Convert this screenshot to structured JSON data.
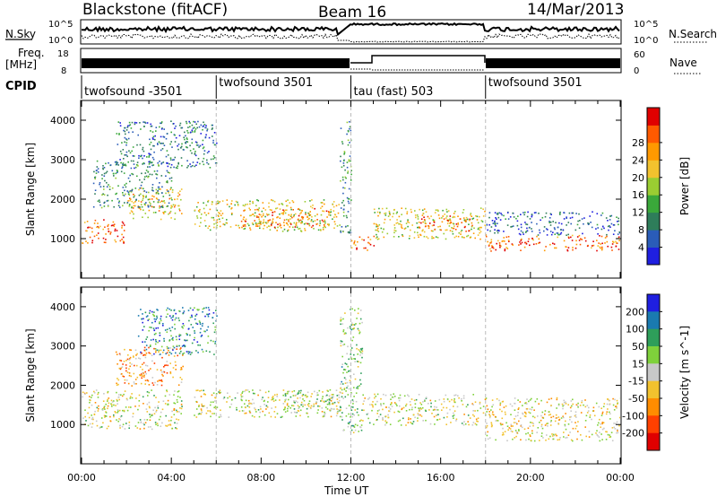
{
  "header": {
    "station": "Blackstone (fitACF)",
    "beam": "Beam 16",
    "date": "14/Mar/2013"
  },
  "strip_labels": {
    "nsky": "N.Sky",
    "nsearch": "N.Search",
    "freq_line1": "Freq.",
    "freq_line2": "[MHz]",
    "nave": "Nave",
    "cpid": "CPID",
    "nsky_ticks": [
      "10^5",
      "10^0"
    ],
    "freq_ticks": [
      "18",
      "8"
    ],
    "nave_ticks": [
      "60",
      "0"
    ]
  },
  "cpid_segments": [
    {
      "label": "twofsound -3501",
      "start": 0.0,
      "end": 6.0
    },
    {
      "label": "twofsound 3501",
      "start": 6.0,
      "end": 12.0
    },
    {
      "label": "tau (fast) 503",
      "start": 12.0,
      "end": 18.0
    },
    {
      "label": "twofsound 3501",
      "start": 18.0,
      "end": 24.0
    }
  ],
  "chart_data": [
    {
      "type": "heatmap",
      "xlabel": "Time UT",
      "ylabel": "Slant Range [km]",
      "xlim": [
        0,
        24
      ],
      "ylim": [
        0,
        4500
      ],
      "x_tick_labels": [
        "00:00",
        "04:00",
        "08:00",
        "12:00",
        "16:00",
        "20:00",
        "00:00"
      ],
      "y_tick_labels": [
        "1000",
        "2000",
        "3000",
        "4000"
      ],
      "colorbar": {
        "label": "Power [dB]",
        "tick_labels": [
          "4",
          "8",
          "12",
          "16",
          "20",
          "24",
          "28"
        ],
        "colors": [
          "#1f1fe0",
          "#2a5cb8",
          "#2e7d5a",
          "#3aa83a",
          "#9acd32",
          "#f2c22e",
          "#ff9900",
          "#ff5a00",
          "#e00000"
        ]
      },
      "bands": [
        {
          "t0": 0.0,
          "t1": 2.0,
          "r0": 900,
          "r1": 1500,
          "value": 26
        },
        {
          "t0": 2.0,
          "t1": 4.5,
          "r0": 1500,
          "r1": 2300,
          "value": 20
        },
        {
          "t0": 0.5,
          "t1": 4.0,
          "r0": 1800,
          "r1": 3000,
          "value": 10
        },
        {
          "t0": 1.5,
          "t1": 6.0,
          "r0": 2800,
          "r1": 4000,
          "value": 8
        },
        {
          "t0": 5.0,
          "t1": 11.5,
          "r0": 1200,
          "r1": 2000,
          "value": 18
        },
        {
          "t0": 7.0,
          "t1": 11.0,
          "r0": 1300,
          "r1": 1800,
          "value": 24
        },
        {
          "t0": 11.5,
          "t1": 12.0,
          "r0": 1100,
          "r1": 4000,
          "value": 10
        },
        {
          "t0": 12.0,
          "t1": 13.0,
          "r0": 700,
          "r1": 1100,
          "value": 24
        },
        {
          "t0": 13.0,
          "t1": 18.0,
          "r0": 1000,
          "r1": 1800,
          "value": 18
        },
        {
          "t0": 15.0,
          "t1": 17.5,
          "r0": 1200,
          "r1": 1600,
          "value": 24
        },
        {
          "t0": 18.0,
          "t1": 24.0,
          "r0": 700,
          "r1": 1100,
          "value": 26
        },
        {
          "t0": 18.0,
          "t1": 24.0,
          "r0": 1100,
          "r1": 1700,
          "value": 6
        }
      ]
    },
    {
      "type": "heatmap",
      "xlabel": "Time UT",
      "ylabel": "Slant Range [km]",
      "xlim": [
        0,
        24
      ],
      "ylim": [
        0,
        4500
      ],
      "x_tick_labels": [
        "00:00",
        "04:00",
        "08:00",
        "12:00",
        "16:00",
        "20:00",
        "00:00"
      ],
      "y_tick_labels": [
        "1000",
        "2000",
        "3000",
        "4000"
      ],
      "colorbar": {
        "label": "Velocity [m s^-1]",
        "tick_labels": [
          "200",
          "100",
          "50",
          "15",
          "-15",
          "-50",
          "-100",
          "-200"
        ],
        "colors": [
          "#1f1fe0",
          "#1a7ab0",
          "#2e9e5a",
          "#7fd13b",
          "#c8c8c8",
          "#f2c22e",
          "#ff8c00",
          "#ff4000",
          "#e00000"
        ]
      },
      "bands": [
        {
          "t0": 0.0,
          "t1": 4.5,
          "r0": 900,
          "r1": 1900,
          "value": 0
        },
        {
          "t0": 1.5,
          "t1": 4.5,
          "r0": 2000,
          "r1": 3000,
          "value": -80
        },
        {
          "t0": 2.5,
          "t1": 6.0,
          "r0": 2800,
          "r1": 4000,
          "value": 120
        },
        {
          "t0": 5.0,
          "t1": 11.5,
          "r0": 1200,
          "r1": 1900,
          "value": 0
        },
        {
          "t0": 9.0,
          "t1": 11.5,
          "r0": 1300,
          "r1": 1900,
          "value": 30
        },
        {
          "t0": 11.5,
          "t1": 12.5,
          "r0": 800,
          "r1": 4000,
          "value": 40
        },
        {
          "t0": 12.5,
          "t1": 18.0,
          "r0": 1000,
          "r1": 1800,
          "value": 0
        },
        {
          "t0": 18.0,
          "t1": 24.0,
          "r0": 600,
          "r1": 1700,
          "value": -20
        }
      ]
    }
  ]
}
